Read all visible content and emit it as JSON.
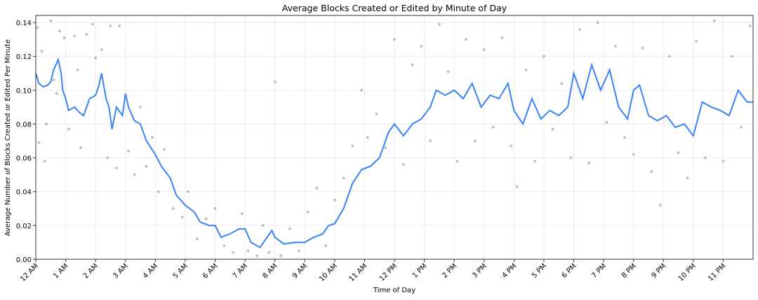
{
  "chart_data": {
    "type": "line+scatter",
    "title": "Average Blocks Created or Edited by Minute of Day",
    "xlabel": "Time of Day",
    "ylabel": "Average Number of Blocks Created or Edited Per Minute",
    "xlim": [
      0,
      24
    ],
    "ylim": [
      0,
      0.1442
    ],
    "grid": true,
    "xticks": [
      {
        "v": 0,
        "l": "12 AM"
      },
      {
        "v": 1,
        "l": "1 AM"
      },
      {
        "v": 2,
        "l": "2 AM"
      },
      {
        "v": 3,
        "l": "3 AM"
      },
      {
        "v": 4,
        "l": "4 AM"
      },
      {
        "v": 5,
        "l": "5 AM"
      },
      {
        "v": 6,
        "l": "6 AM"
      },
      {
        "v": 7,
        "l": "7 AM"
      },
      {
        "v": 8,
        "l": "8 AM"
      },
      {
        "v": 9,
        "l": "9 AM"
      },
      {
        "v": 10,
        "l": "10 AM"
      },
      {
        "v": 11,
        "l": "11 AM"
      },
      {
        "v": 12,
        "l": "12 PM"
      },
      {
        "v": 13,
        "l": "1 PM"
      },
      {
        "v": 14,
        "l": "2 PM"
      },
      {
        "v": 15,
        "l": "3 PM"
      },
      {
        "v": 16,
        "l": "4 PM"
      },
      {
        "v": 17,
        "l": "5 PM"
      },
      {
        "v": 18,
        "l": "6 PM"
      },
      {
        "v": 19,
        "l": "7 PM"
      },
      {
        "v": 20,
        "l": "8 PM"
      },
      {
        "v": 21,
        "l": "9 PM"
      },
      {
        "v": 22,
        "l": "10 PM"
      },
      {
        "v": 23,
        "l": "11 PM"
      }
    ],
    "yticks": [
      {
        "v": 0,
        "l": "0.00"
      },
      {
        "v": 0.02,
        "l": "0.02"
      },
      {
        "v": 0.04,
        "l": "0.04"
      },
      {
        "v": 0.06,
        "l": "0.06"
      },
      {
        "v": 0.08,
        "l": "0.08"
      },
      {
        "v": 0.1,
        "l": "0.10"
      },
      {
        "v": 0.12,
        "l": "0.12"
      },
      {
        "v": 0.14,
        "l": "0.14"
      }
    ],
    "colors": {
      "line": "#3b82f6",
      "points": "#999999"
    },
    "line": [
      [
        0,
        0.11
      ],
      [
        0.1,
        0.104
      ],
      [
        0.25,
        0.102
      ],
      [
        0.4,
        0.103
      ],
      [
        0.5,
        0.105
      ],
      [
        0.6,
        0.112
      ],
      [
        0.75,
        0.118
      ],
      [
        0.85,
        0.11
      ],
      [
        0.9,
        0.1
      ],
      [
        1.0,
        0.095
      ],
      [
        1.1,
        0.088
      ],
      [
        1.3,
        0.09
      ],
      [
        1.45,
        0.087
      ],
      [
        1.6,
        0.085
      ],
      [
        1.8,
        0.095
      ],
      [
        2.0,
        0.097
      ],
      [
        2.1,
        0.102
      ],
      [
        2.2,
        0.11
      ],
      [
        2.35,
        0.095
      ],
      [
        2.45,
        0.09
      ],
      [
        2.55,
        0.077
      ],
      [
        2.7,
        0.09
      ],
      [
        2.9,
        0.085
      ],
      [
        3.0,
        0.098
      ],
      [
        3.1,
        0.09
      ],
      [
        3.3,
        0.082
      ],
      [
        3.5,
        0.08
      ],
      [
        3.7,
        0.07
      ],
      [
        3.85,
        0.066
      ],
      [
        4.0,
        0.062
      ],
      [
        4.2,
        0.055
      ],
      [
        4.5,
        0.048
      ],
      [
        4.7,
        0.038
      ],
      [
        5.0,
        0.032
      ],
      [
        5.3,
        0.028
      ],
      [
        5.5,
        0.022
      ],
      [
        5.8,
        0.02
      ],
      [
        6.0,
        0.02
      ],
      [
        6.2,
        0.013
      ],
      [
        6.5,
        0.015
      ],
      [
        6.8,
        0.018
      ],
      [
        7.0,
        0.018
      ],
      [
        7.2,
        0.01
      ],
      [
        7.5,
        0.007
      ],
      [
        7.7,
        0.012
      ],
      [
        7.9,
        0.017
      ],
      [
        8.0,
        0.013
      ],
      [
        8.3,
        0.009
      ],
      [
        8.7,
        0.01
      ],
      [
        9.0,
        0.01
      ],
      [
        9.3,
        0.013
      ],
      [
        9.6,
        0.015
      ],
      [
        9.8,
        0.02
      ],
      [
        10.0,
        0.021
      ],
      [
        10.3,
        0.03
      ],
      [
        10.6,
        0.045
      ],
      [
        10.9,
        0.053
      ],
      [
        11.2,
        0.055
      ],
      [
        11.5,
        0.06
      ],
      [
        11.8,
        0.075
      ],
      [
        12.0,
        0.08
      ],
      [
        12.3,
        0.073
      ],
      [
        12.6,
        0.08
      ],
      [
        12.9,
        0.083
      ],
      [
        13.2,
        0.09
      ],
      [
        13.4,
        0.1
      ],
      [
        13.7,
        0.097
      ],
      [
        14.0,
        0.1
      ],
      [
        14.3,
        0.095
      ],
      [
        14.6,
        0.104
      ],
      [
        14.9,
        0.09
      ],
      [
        15.2,
        0.097
      ],
      [
        15.5,
        0.095
      ],
      [
        15.8,
        0.104
      ],
      [
        16.0,
        0.088
      ],
      [
        16.3,
        0.08
      ],
      [
        16.6,
        0.095
      ],
      [
        16.9,
        0.083
      ],
      [
        17.2,
        0.088
      ],
      [
        17.5,
        0.085
      ],
      [
        17.8,
        0.09
      ],
      [
        18.0,
        0.11
      ],
      [
        18.3,
        0.095
      ],
      [
        18.6,
        0.115
      ],
      [
        18.9,
        0.1
      ],
      [
        19.2,
        0.112
      ],
      [
        19.5,
        0.09
      ],
      [
        19.8,
        0.083
      ],
      [
        20.0,
        0.1
      ],
      [
        20.2,
        0.103
      ],
      [
        20.5,
        0.085
      ],
      [
        20.8,
        0.082
      ],
      [
        21.1,
        0.085
      ],
      [
        21.4,
        0.078
      ],
      [
        21.7,
        0.08
      ],
      [
        22.0,
        0.073
      ],
      [
        22.3,
        0.093
      ],
      [
        22.6,
        0.09
      ],
      [
        22.9,
        0.088
      ],
      [
        23.2,
        0.085
      ],
      [
        23.5,
        0.1
      ],
      [
        23.8,
        0.093
      ],
      [
        24,
        0.093
      ]
    ],
    "points": [
      [
        0.05,
        0.137
      ],
      [
        0.1,
        0.069
      ],
      [
        0.2,
        0.123
      ],
      [
        0.3,
        0.058
      ],
      [
        0.35,
        0.08
      ],
      [
        0.5,
        0.141
      ],
      [
        0.6,
        0.106
      ],
      [
        0.7,
        0.098
      ],
      [
        0.8,
        0.135
      ],
      [
        0.95,
        0.131
      ],
      [
        1.1,
        0.077
      ],
      [
        1.3,
        0.132
      ],
      [
        1.4,
        0.112
      ],
      [
        1.5,
        0.066
      ],
      [
        1.7,
        0.133
      ],
      [
        1.9,
        0.139
      ],
      [
        2.0,
        0.119
      ],
      [
        2.2,
        0.124
      ],
      [
        2.4,
        0.06
      ],
      [
        2.5,
        0.138
      ],
      [
        2.7,
        0.054
      ],
      [
        2.8,
        0.138
      ],
      [
        3.1,
        0.064
      ],
      [
        3.3,
        0.05
      ],
      [
        3.5,
        0.09
      ],
      [
        3.7,
        0.055
      ],
      [
        3.9,
        0.072
      ],
      [
        4.1,
        0.04
      ],
      [
        4.3,
        0.065
      ],
      [
        4.6,
        0.03
      ],
      [
        4.9,
        0.025
      ],
      [
        5.1,
        0.04
      ],
      [
        5.4,
        0.012
      ],
      [
        5.7,
        0.024
      ],
      [
        6.0,
        0.03
      ],
      [
        6.3,
        0.008
      ],
      [
        6.6,
        0.004
      ],
      [
        6.9,
        0.027
      ],
      [
        7.1,
        0.005
      ],
      [
        7.4,
        0.002
      ],
      [
        7.6,
        0.02
      ],
      [
        7.8,
        0.004
      ],
      [
        8.0,
        0.105
      ],
      [
        8.2,
        0.002
      ],
      [
        8.5,
        0.018
      ],
      [
        8.8,
        0.005
      ],
      [
        9.1,
        0.028
      ],
      [
        9.4,
        0.042
      ],
      [
        9.7,
        0.008
      ],
      [
        10.0,
        0.035
      ],
      [
        10.3,
        0.048
      ],
      [
        10.6,
        0.067
      ],
      [
        10.9,
        0.1
      ],
      [
        11.1,
        0.072
      ],
      [
        11.4,
        0.086
      ],
      [
        11.7,
        0.066
      ],
      [
        12.0,
        0.13
      ],
      [
        12.3,
        0.056
      ],
      [
        12.6,
        0.115
      ],
      [
        12.9,
        0.126
      ],
      [
        13.2,
        0.07
      ],
      [
        13.5,
        0.139
      ],
      [
        13.8,
        0.111
      ],
      [
        14.1,
        0.058
      ],
      [
        14.4,
        0.13
      ],
      [
        14.7,
        0.07
      ],
      [
        15.0,
        0.124
      ],
      [
        15.3,
        0.078
      ],
      [
        15.6,
        0.131
      ],
      [
        15.9,
        0.067
      ],
      [
        16.1,
        0.043
      ],
      [
        16.4,
        0.112
      ],
      [
        16.7,
        0.058
      ],
      [
        17.0,
        0.12
      ],
      [
        17.3,
        0.077
      ],
      [
        17.6,
        0.104
      ],
      [
        17.9,
        0.06
      ],
      [
        18.2,
        0.136
      ],
      [
        18.5,
        0.057
      ],
      [
        18.8,
        0.14
      ],
      [
        19.1,
        0.081
      ],
      [
        19.4,
        0.126
      ],
      [
        19.7,
        0.072
      ],
      [
        20.0,
        0.062
      ],
      [
        20.3,
        0.125
      ],
      [
        20.6,
        0.052
      ],
      [
        20.9,
        0.032
      ],
      [
        21.2,
        0.12
      ],
      [
        21.5,
        0.063
      ],
      [
        21.8,
        0.048
      ],
      [
        22.1,
        0.129
      ],
      [
        22.4,
        0.06
      ],
      [
        22.7,
        0.141
      ],
      [
        23.0,
        0.058
      ],
      [
        23.3,
        0.12
      ],
      [
        23.6,
        0.078
      ],
      [
        23.9,
        0.138
      ]
    ]
  }
}
